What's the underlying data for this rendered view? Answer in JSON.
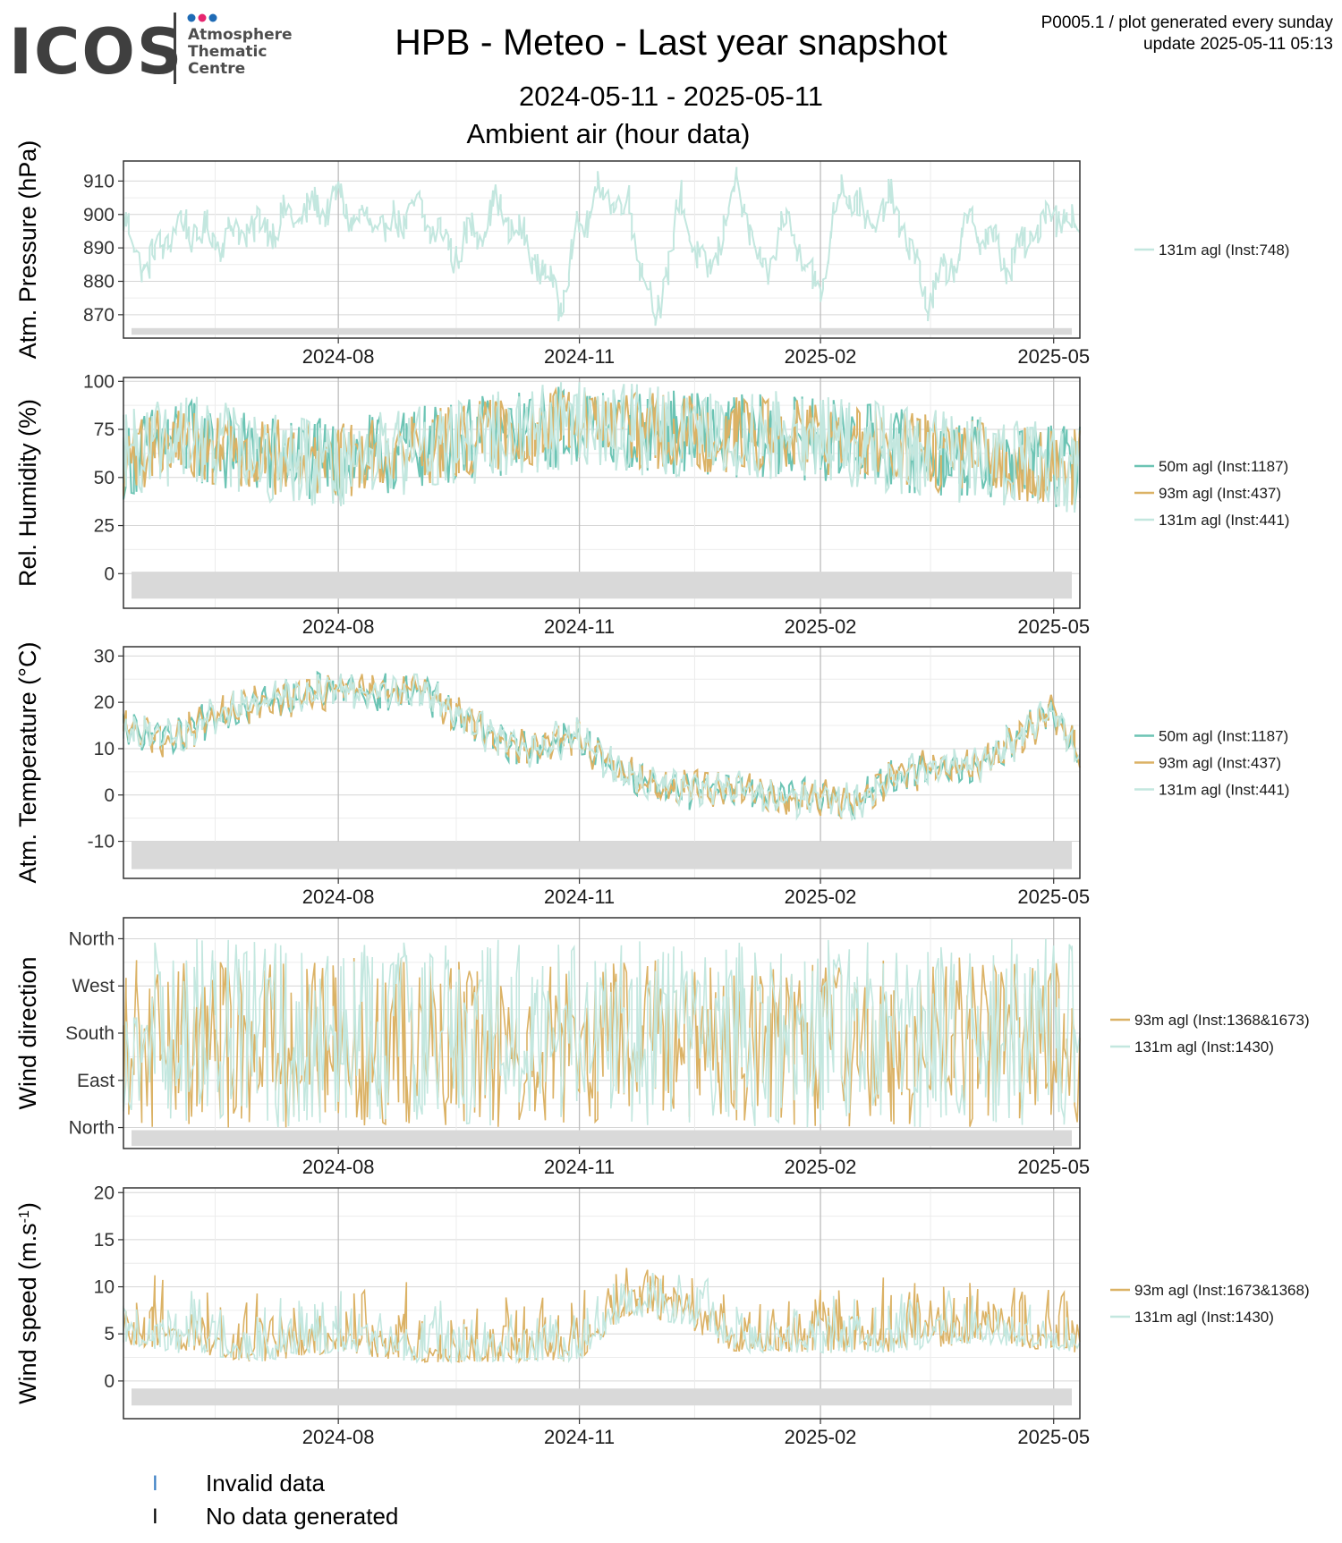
{
  "header": {
    "logo_text": "ICOS",
    "logo_sub": [
      "Atmosphere",
      "Thematic",
      "Centre"
    ],
    "title": "HPB - Meteo - Last year snapshot",
    "date_range": "2024-05-11 - 2025-05-11",
    "subtitle": "Ambient air (hour data)",
    "meta_line1": "P0005.1 / plot generated every sunday",
    "meta_line2": "update  2025-05-11 05:13"
  },
  "colors": {
    "m50": "#6cc4b4",
    "m93": "#dbb265",
    "m131": "#c3e7df",
    "grid_major": "#d6d6d6",
    "grid_minor": "#ececec",
    "missing_band": "#d9d9d9",
    "invalid_mark": "#3b7fc4",
    "nodata_mark": "#000000"
  },
  "bottom_legend": {
    "invalid_mark": "I",
    "invalid": "Invalid data",
    "nodata_mark": "I",
    "nodata": "No data generated"
  },
  "chart_data": [
    {
      "type": "line",
      "ylabel": "Atm. Pressure (hPa)",
      "ylabel_super": "",
      "x_range": [
        "2024-05-11",
        "2025-05-11"
      ],
      "x_ticks": [
        "2024-08",
        "2024-11",
        "2025-02",
        "2025-05"
      ],
      "ylim": [
        863,
        916
      ],
      "y_ticks": [
        910,
        900,
        890,
        880,
        870
      ],
      "y_ticklabels": [
        "910",
        "900",
        "890",
        "880",
        "870"
      ],
      "gridline_missing_band": [
        864,
        866
      ],
      "series": [
        {
          "name": "131m agl (Inst:748)",
          "color_key": "m131",
          "x": [
            "2024-05-11",
            "2024-05-20",
            "2024-06-01",
            "2024-06-15",
            "2024-07-01",
            "2024-07-15",
            "2024-08-01",
            "2024-08-15",
            "2024-09-01",
            "2024-09-15",
            "2024-10-01",
            "2024-10-15",
            "2024-10-25",
            "2024-11-01",
            "2024-11-10",
            "2024-11-20",
            "2024-12-01",
            "2024-12-10",
            "2024-12-20",
            "2025-01-01",
            "2025-01-10",
            "2025-01-20",
            "2025-02-01",
            "2025-02-10",
            "2025-02-20",
            "2025-03-01",
            "2025-03-15",
            "2025-04-01",
            "2025-04-15",
            "2025-05-01",
            "2025-05-11"
          ],
          "y": [
            898,
            884,
            897,
            893,
            896,
            899,
            904,
            895,
            901,
            889,
            902,
            888,
            874,
            895,
            907,
            902,
            868,
            904,
            880,
            910,
            880,
            899,
            876,
            911,
            896,
            904,
            874,
            898,
            885,
            902,
            896
          ]
        }
      ]
    },
    {
      "type": "line",
      "ylabel": "Rel. Humidity (%)",
      "ylabel_super": "",
      "x_range": [
        "2024-05-11",
        "2025-05-11"
      ],
      "x_ticks": [
        "2024-08",
        "2024-11",
        "2025-02",
        "2025-05"
      ],
      "ylim": [
        -18,
        102
      ],
      "y_ticks": [
        100,
        75,
        50,
        25,
        0
      ],
      "y_ticklabels": [
        "100",
        "75",
        "50",
        "25",
        "0"
      ],
      "gridline_missing_band": [
        -13,
        1
      ],
      "series": [
        {
          "name": "50m agl (Inst:1187)",
          "color_key": "m50",
          "amp": 0.55
        },
        {
          "name": "93m agl (Inst:437)",
          "color_key": "m93",
          "amp": 0.5
        },
        {
          "name": "131m agl (Inst:441)",
          "color_key": "m131",
          "amp": 0.6,
          "x": [
            "2024-05-11",
            "2024-06-01",
            "2024-07-01",
            "2024-08-01",
            "2024-09-01",
            "2024-10-01",
            "2024-11-01",
            "2024-12-01",
            "2025-01-01",
            "2025-02-01",
            "2025-03-01",
            "2025-04-01",
            "2025-05-11"
          ],
          "y": [
            60,
            70,
            62,
            58,
            65,
            72,
            78,
            74,
            72,
            70,
            65,
            60,
            55
          ]
        }
      ]
    },
    {
      "type": "line",
      "ylabel": "Atm. Temperature (°C)",
      "ylabel_super": "",
      "x_range": [
        "2024-05-11",
        "2025-05-11"
      ],
      "x_ticks": [
        "2024-08",
        "2024-11",
        "2025-02",
        "2025-05"
      ],
      "ylim": [
        -18,
        32
      ],
      "y_ticks": [
        30,
        20,
        10,
        0,
        -10
      ],
      "y_ticklabels": [
        "30",
        "20",
        "10",
        "0",
        "-10"
      ],
      "gridline_missing_band": [
        -16,
        -10
      ],
      "series": [
        {
          "name": "50m agl (Inst:1187)",
          "color_key": "m50",
          "amp": 0.5
        },
        {
          "name": "93m agl (Inst:437)",
          "color_key": "m93",
          "amp": 0.5
        },
        {
          "name": "131m agl (Inst:441)",
          "color_key": "m131",
          "amp": 0.5,
          "x": [
            "2024-05-11",
            "2024-06-01",
            "2024-06-15",
            "2024-07-01",
            "2024-07-15",
            "2024-08-01",
            "2024-08-15",
            "2024-09-01",
            "2024-09-15",
            "2024-10-01",
            "2024-10-15",
            "2024-11-01",
            "2024-11-15",
            "2024-12-01",
            "2024-12-15",
            "2025-01-01",
            "2025-01-15",
            "2025-02-01",
            "2025-02-15",
            "2025-03-01",
            "2025-03-15",
            "2025-04-01",
            "2025-04-15",
            "2025-05-01",
            "2025-05-11"
          ],
          "y": [
            14,
            12,
            17,
            20,
            21,
            23,
            22,
            23,
            18,
            12,
            10,
            13,
            5,
            2,
            1,
            2,
            -1,
            0,
            -2,
            4,
            6,
            6,
            11,
            18,
            9
          ]
        }
      ]
    },
    {
      "type": "line",
      "ylabel": "Wind direction",
      "ylabel_super": "",
      "x_range": [
        "2024-05-11",
        "2025-05-11"
      ],
      "x_ticks": [
        "2024-08",
        "2024-11",
        "2025-02",
        "2025-05"
      ],
      "ylim": [
        -40,
        400
      ],
      "y_ticks": [
        360,
        270,
        180,
        90,
        0
      ],
      "y_ticklabels": [
        "North",
        "West",
        "South",
        "East",
        "North"
      ],
      "gridline_missing_band": [
        -35,
        -5
      ],
      "series": [
        {
          "name": "93m agl (Inst:1368&1673)",
          "color_key": "m93",
          "amp": 0.9
        },
        {
          "name": "131m agl (Inst:1430)",
          "color_key": "m131",
          "amp": 1.0,
          "x": [
            "2024-05-11",
            "2025-05-11"
          ],
          "y": [
            180,
            180
          ]
        }
      ]
    },
    {
      "type": "line",
      "ylabel": "Wind speed (m.s",
      "ylabel_super": "-1",
      "ylabel_suffix": ")",
      "x_range": [
        "2024-05-11",
        "2025-05-11"
      ],
      "x_ticks": [
        "2024-08",
        "2024-11",
        "2025-02",
        "2025-05"
      ],
      "ylim": [
        -4,
        20.5
      ],
      "y_ticks": [
        20,
        15,
        10,
        5,
        0
      ],
      "y_ticklabels": [
        "20",
        "15",
        "10",
        "5",
        "0"
      ],
      "gridline_missing_band": [
        -2.6,
        -0.8
      ],
      "series": [
        {
          "name": "93m agl (Inst:1673&1368)",
          "color_key": "m93",
          "amp": 0.6
        },
        {
          "name": "131m agl (Inst:1430)",
          "color_key": "m131",
          "amp": 0.5,
          "x": [
            "2024-05-11",
            "2024-06-01",
            "2024-07-01",
            "2024-08-01",
            "2024-09-01",
            "2024-10-01",
            "2024-11-01",
            "2024-11-20",
            "2024-12-10",
            "2025-01-01",
            "2025-02-01",
            "2025-03-01",
            "2025-04-01",
            "2025-05-11"
          ],
          "y": [
            6,
            5,
            4,
            5,
            4,
            4,
            4,
            9,
            8,
            5,
            5,
            5,
            6,
            5
          ]
        }
      ]
    }
  ]
}
